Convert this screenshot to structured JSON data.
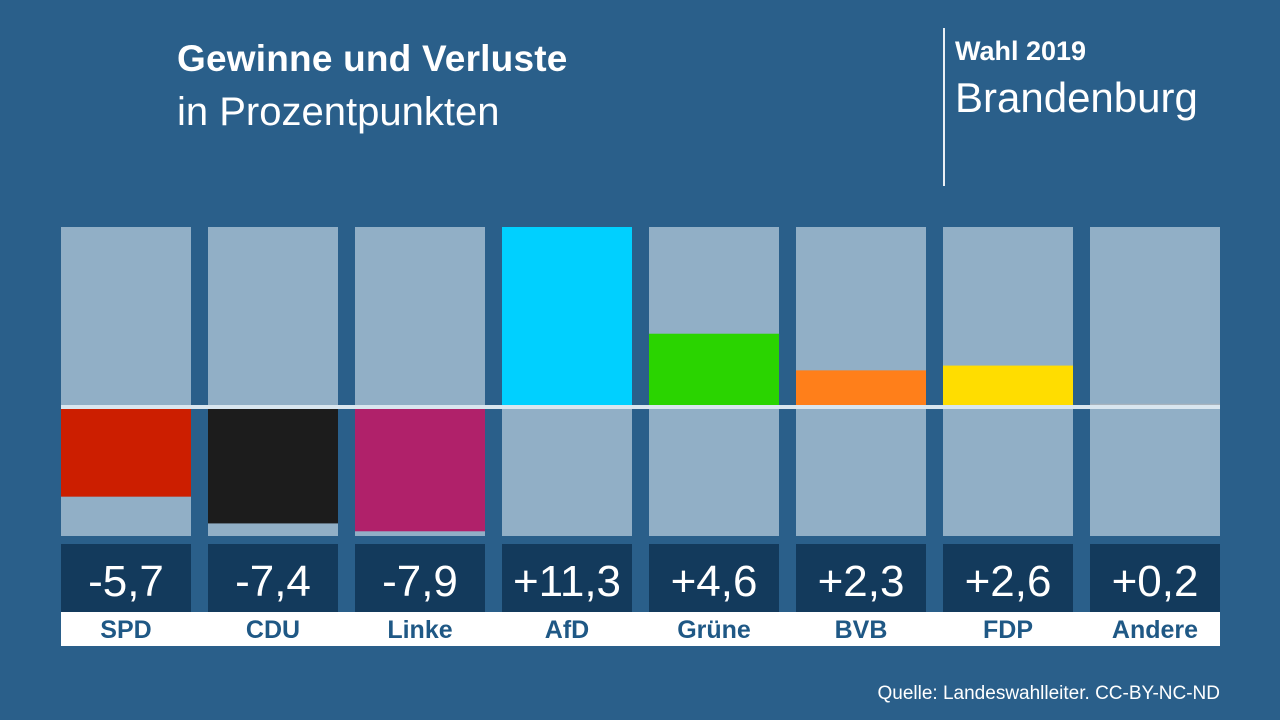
{
  "header": {
    "title": "Gewinne und Verluste",
    "subtitle": "in Prozentpunkten",
    "election": "Wahl 2019",
    "region": "Brandenburg"
  },
  "footer": {
    "source": "Quelle: Landeswahlleiter. CC-BY-NC-ND"
  },
  "chart_data": {
    "type": "bar",
    "title": "Gewinne und Verluste",
    "subtitle": "in Prozentpunkten",
    "categories": [
      "SPD",
      "CDU",
      "Linke",
      "AfD",
      "Grüne",
      "BVB",
      "FDP",
      "Andere"
    ],
    "values": [
      -5.7,
      -7.4,
      -7.9,
      11.3,
      4.6,
      2.3,
      2.6,
      0.2
    ],
    "value_labels": [
      "-5,7",
      "-7,4",
      "-7,9",
      "+11,3",
      "+4,6",
      "+2,3",
      "+2,6",
      "+0,2"
    ],
    "colors": [
      "#cc1e00",
      "#1c1c1c",
      "#b0216a",
      "#00d0ff",
      "#2ad400",
      "#ff7f1a",
      "#ffdd00",
      "#a8b4be"
    ],
    "ylim": [
      -8.2,
      11.3
    ],
    "track_color": "#91afc6",
    "zero_line_color": "#d9e6ef",
    "label_box_color": "#133a5c",
    "name_box_color": "#ffffff",
    "name_text_color": "#1f5885",
    "xlabel": "",
    "ylabel": "",
    "grid": false,
    "legend": "none"
  }
}
